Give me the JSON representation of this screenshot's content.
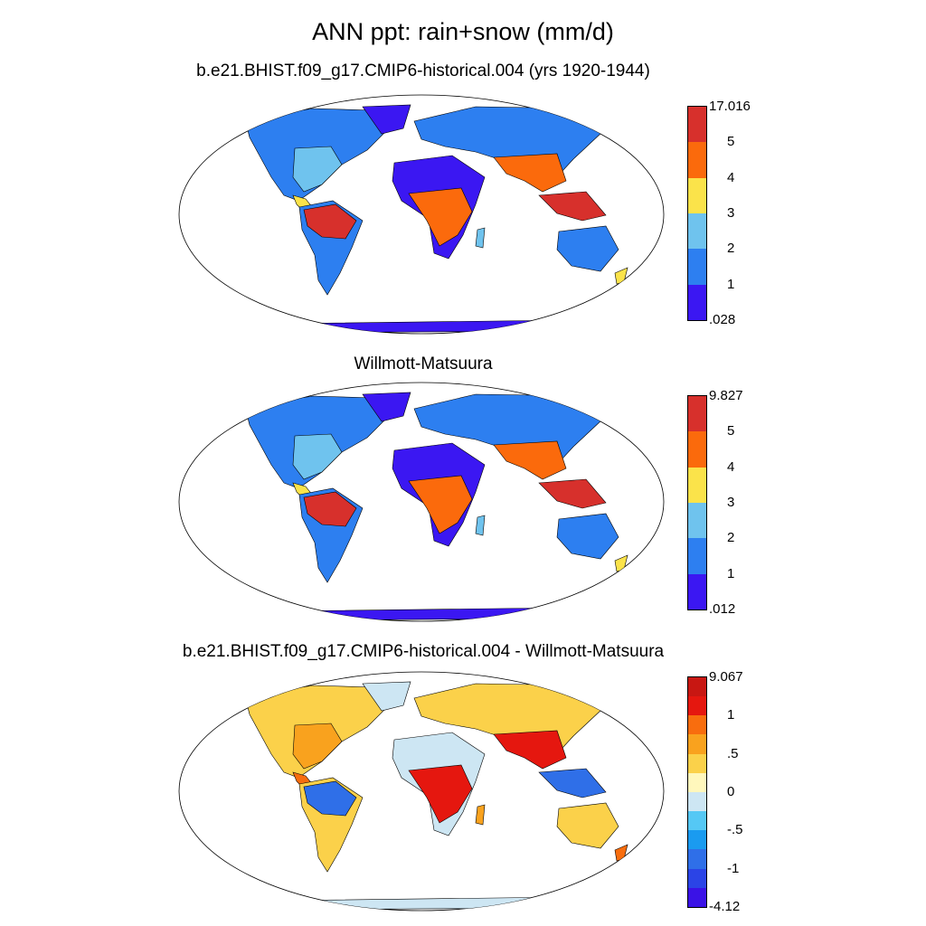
{
  "title": "ANN ppt: rain+snow (mm/d)",
  "panels": [
    {
      "title": "b.e21.BHIST.f09_g17.CMIP6-historical.004 (yrs 1920-1944)",
      "colorbar": {
        "colors": [
          "#3b17f2",
          "#2d7ff0",
          "#6fc3ee",
          "#fbe34a",
          "#fb6a0c",
          "#d7302c"
        ],
        "labels": [
          ".028",
          "1",
          "2",
          "3",
          "4",
          "5",
          "17.016"
        ]
      },
      "palette": {
        "ocean": "#ffffff",
        "dry": "#3b17f2",
        "low": "#2d7ff0",
        "mid": "#6fc3ee",
        "wet": "#fbe34a",
        "vwet": "#fb6a0c",
        "max": "#d7302c"
      }
    },
    {
      "title": "Willmott-Matsuura",
      "colorbar": {
        "colors": [
          "#3b17f2",
          "#2d7ff0",
          "#6fc3ee",
          "#fbe34a",
          "#fb6a0c",
          "#d7302c"
        ],
        "labels": [
          ".012",
          "1",
          "2",
          "3",
          "4",
          "5",
          "9.827"
        ]
      },
      "palette": {
        "ocean": "#ffffff",
        "dry": "#3b17f2",
        "low": "#2d7ff0",
        "mid": "#6fc3ee",
        "wet": "#fbe34a",
        "vwet": "#fb6a0c",
        "max": "#d7302c"
      }
    },
    {
      "title": "b.e21.BHIST.f09_g17.CMIP6-historical.004 - Willmott-Matsuura",
      "colorbar": {
        "colors": [
          "#3a12e6",
          "#2b44e6",
          "#2f6fe8",
          "#1a9bf0",
          "#55c8f5",
          "#cde6f3",
          "#fff7bc",
          "#fbd14a",
          "#f9a21e",
          "#f86d0e",
          "#e5170f",
          "#c81712"
        ],
        "labels": [
          "-4.12",
          "",
          "-1",
          "",
          "-.5",
          "",
          "0",
          "",
          ".5",
          "",
          "1",
          "",
          "9.067"
        ]
      },
      "palette": {
        "ocean": "#ffffff",
        "dry": "#cde6f3",
        "low": "#fbd14a",
        "mid": "#f9a21e",
        "wet": "#f86d0e",
        "vwet": "#e5170f",
        "max": "#2f6fe8"
      }
    }
  ]
}
